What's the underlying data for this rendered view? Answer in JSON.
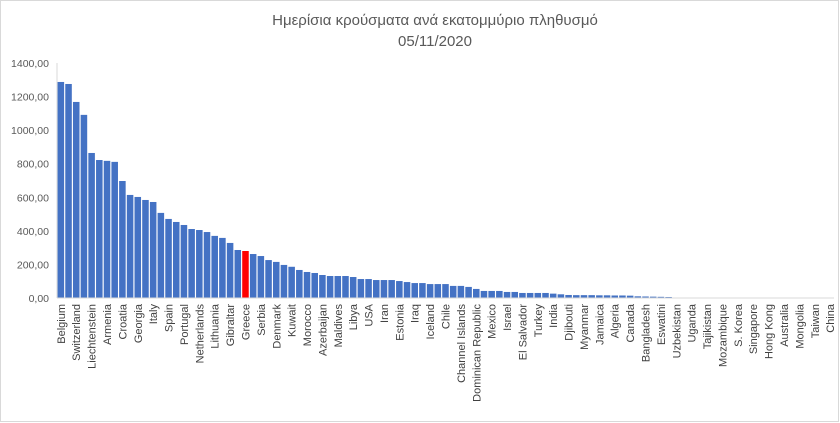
{
  "chart_data": {
    "type": "bar",
    "title": "Ημερίσια κρούσματα ανά εκατομμύριο πληθυσμό",
    "subtitle": "05/11/2020",
    "xlabel": "",
    "ylabel": "",
    "ylim": [
      0,
      1400
    ],
    "yticks": [
      "0,00",
      "200,00",
      "400,00",
      "600,00",
      "800,00",
      "1000,00",
      "1200,00",
      "1400,00"
    ],
    "grid": false,
    "legend": "none",
    "colors": {
      "bar": "#4472C4",
      "highlight": "#FF0000"
    },
    "highlight": "Greece",
    "categories": [
      "Belgium",
      "",
      "Switzerland",
      "",
      "Liechtenstein",
      "",
      "Armenia",
      "",
      "Croatia",
      "",
      "Georgia",
      "",
      "Italy",
      "",
      "Spain",
      "",
      "Portugal",
      "",
      "Netherlands",
      "",
      "Lithuania",
      "",
      "Gibraltar",
      "",
      "Greece",
      "",
      "Serbia",
      "",
      "Denmark",
      "",
      "Kuwait",
      "",
      "Morocco",
      "",
      "Azerbaijan",
      "",
      "Maldives",
      "",
      "Libya",
      "",
      "USA",
      "",
      "Iran",
      "",
      "Estonia",
      "",
      "Iraq",
      "",
      "Iceland",
      "",
      "Chile",
      "",
      "Channel Islands",
      "",
      "Dominican Republic",
      "",
      "Mexico",
      "",
      "Israel",
      "",
      "El Salvador",
      "",
      "Turkey",
      "",
      "India",
      "",
      "Djibouti",
      "",
      "Myanmar",
      "",
      "Jamaica",
      "",
      "Algeria",
      "",
      "Canada",
      "",
      "Bangladesh",
      "",
      "Eswatini",
      "",
      "Uzbekistan",
      "",
      "Uganda",
      "",
      "Tajikistan",
      "",
      "Mozambique",
      "",
      "S. Korea",
      "",
      "Singapore",
      "",
      "Hong Kong",
      "",
      "Australia",
      "",
      "Mongolia",
      "",
      "Taiwan",
      "",
      "China"
    ],
    "values": [
      1287,
      1275,
      1168,
      1091,
      864,
      822,
      817,
      811,
      697,
      614,
      602,
      584,
      572,
      507,
      471,
      453,
      435,
      411,
      405,
      393,
      370,
      358,
      328,
      286,
      280,
      262,
      250,
      226,
      215,
      197,
      186,
      167,
      155,
      149,
      137,
      131,
      131,
      131,
      125,
      113,
      113,
      107,
      107,
      107,
      101,
      95,
      89,
      89,
      83,
      83,
      83,
      72,
      72,
      66,
      54,
      42,
      42,
      42,
      36,
      36,
      30,
      30,
      30,
      30,
      26,
      22,
      18,
      17,
      17,
      17,
      16,
      16,
      15,
      15,
      14,
      10,
      9,
      8,
      7,
      6,
      0,
      0,
      0,
      0,
      0,
      0,
      0,
      0,
      0,
      0,
      0,
      0,
      0,
      0,
      0,
      0,
      0,
      0,
      0,
      0,
      0
    ]
  }
}
